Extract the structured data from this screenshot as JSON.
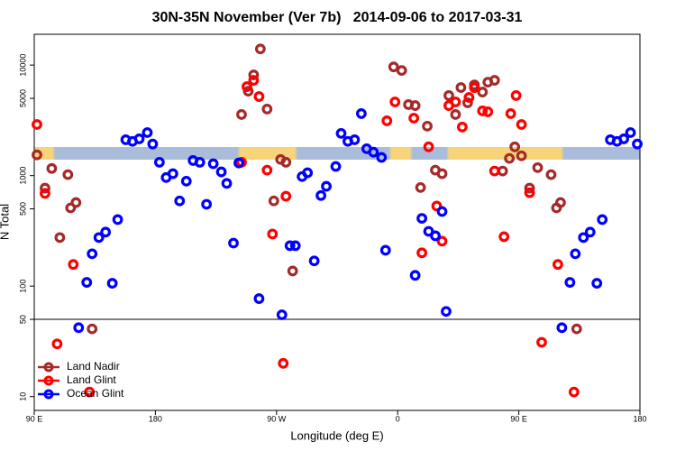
{
  "chart_data": {
    "type": "scatter",
    "title": "30N-35N November (Ver 7b)   2014-09-06 to 2017-03-31",
    "x_label": "Longitude (deg E)",
    "y_label": "N Total",
    "xlim": [
      90,
      540
    ],
    "xticks": [
      {
        "value": 90,
        "label": "90 E"
      },
      {
        "value": 180,
        "label": "180"
      },
      {
        "value": 270,
        "label": "90 W"
      },
      {
        "value": 360,
        "label": "0"
      },
      {
        "value": 450,
        "label": "90 E"
      },
      {
        "value": 540,
        "label": "180"
      }
    ],
    "ylim": [
      7.5,
      19000
    ],
    "y_log": true,
    "yticks": [
      10,
      50,
      100,
      500,
      1000,
      5000,
      10000
    ],
    "hlines": [
      50
    ],
    "legend": "lower left",
    "series": [
      {
        "name": "Land Nadir",
        "color": "#a52a2a",
        "x": [
          92,
          98,
          103,
          109,
          115,
          117,
          121,
          133,
          244,
          249,
          253,
          258,
          263,
          268,
          273,
          277,
          282,
          357,
          363,
          368,
          373,
          377,
          382,
          388,
          393,
          398,
          403,
          407,
          412,
          417,
          423,
          427,
          432,
          438,
          443,
          447,
          452,
          458,
          464,
          474,
          478,
          481,
          493
        ],
        "values": [
          1540,
          770,
          1160,
          275,
          1020,
          510,
          570,
          41,
          3570,
          5800,
          8150,
          14000,
          4000,
          590,
          1400,
          1320,
          137,
          9630,
          8940,
          4390,
          4300,
          780,
          2800,
          1120,
          1040,
          5300,
          3570,
          6260,
          4560,
          6620,
          5700,
          7000,
          7280,
          1100,
          1430,
          1820,
          1510,
          770,
          1180,
          1020,
          510,
          570,
          41
        ]
      },
      {
        "name": "Land Glint",
        "color": "#ff0000",
        "x": [
          92,
          98,
          107,
          119,
          131,
          244,
          248,
          253,
          257,
          263,
          267,
          275,
          277,
          352,
          358,
          372,
          378,
          383,
          389,
          393,
          398,
          403,
          408,
          413,
          417,
          423,
          427,
          432,
          439,
          444,
          448,
          452,
          458,
          467,
          479,
          491
        ],
        "values": [
          2900,
          690,
          30,
          157,
          11,
          1320,
          6380,
          7280,
          5190,
          1120,
          296,
          20,
          650,
          3130,
          4640,
          3310,
          200,
          1820,
          530,
          255,
          4300,
          4640,
          2750,
          5090,
          6250,
          3850,
          3780,
          1100,
          280,
          3640,
          5300,
          2900,
          700,
          31,
          157,
          11
        ]
      },
      {
        "name": "Ocean Glint",
        "color": "#0000ff",
        "x": [
          123,
          129,
          133,
          138,
          143,
          148,
          152,
          158,
          163,
          168,
          174,
          178,
          183,
          188,
          193,
          198,
          203,
          208,
          213,
          218,
          223,
          229,
          233,
          238,
          242,
          257,
          274,
          280,
          284,
          289,
          293,
          298,
          303,
          307,
          314,
          318,
          323,
          328,
          333,
          337,
          342,
          348,
          351,
          373,
          378,
          383,
          388,
          393,
          396,
          482,
          488,
          492,
          498,
          503,
          508,
          512,
          518,
          523,
          528,
          533,
          538
        ],
        "values": [
          42,
          108,
          196,
          275,
          308,
          106,
          400,
          2110,
          2040,
          2150,
          2450,
          1930,
          1320,
          960,
          1040,
          590,
          890,
          1370,
          1320,
          550,
          1280,
          1080,
          850,
          245,
          1300,
          77,
          55,
          232,
          232,
          980,
          1060,
          169,
          660,
          800,
          1210,
          2410,
          2040,
          2110,
          3640,
          1750,
          1630,
          1460,
          211,
          125,
          410,
          313,
          285,
          473,
          59,
          42,
          108,
          196,
          275,
          308,
          106,
          400,
          2110,
          2040,
          2150,
          2450,
          1930
        ]
      }
    ]
  }
}
